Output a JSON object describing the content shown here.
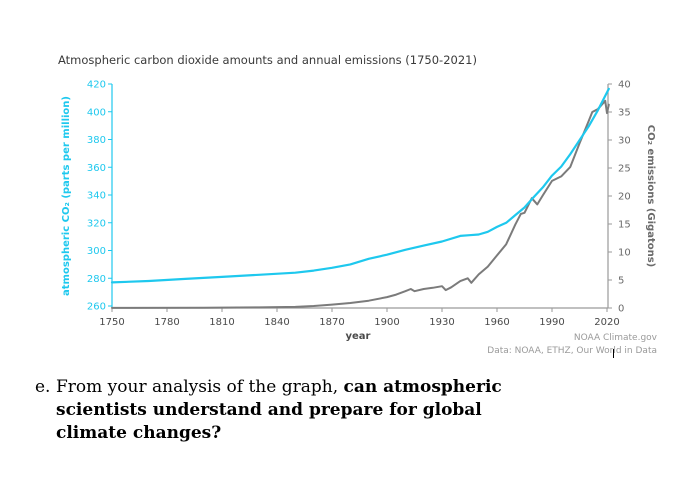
{
  "chart_data": {
    "type": "line",
    "title": "Atmospheric carbon dioxide amounts and annual emissions (1750-2021)",
    "xlabel": "year",
    "ylabel_left": "atmospheric CO₂ (parts per million)",
    "ylabel_right": "CO₂ emissions (Gigatons)",
    "xlim": [
      1750,
      2020
    ],
    "ylim_left": [
      260,
      420
    ],
    "ylim_right": [
      0,
      40
    ],
    "x_ticks": [
      "1750",
      "1780",
      "1810",
      "1840",
      "1870",
      "1900",
      "1930",
      "1960",
      "1990",
      "2020"
    ],
    "y_ticks_left": [
      "260",
      "280",
      "300",
      "320",
      "340",
      "360",
      "380",
      "400",
      "420"
    ],
    "y_ticks_right": [
      "0",
      "5",
      "10",
      "15",
      "20",
      "25",
      "30",
      "35",
      "40"
    ],
    "grid": false,
    "legend": "none",
    "series": [
      {
        "name": "atmospheric CO2 (ppm)",
        "axis": "left",
        "color": "#1ec8ee",
        "x": [
          1750,
          1770,
          1790,
          1810,
          1830,
          1850,
          1860,
          1870,
          1880,
          1890,
          1900,
          1910,
          1920,
          1930,
          1940,
          1945,
          1950,
          1955,
          1960,
          1965,
          1970,
          1975,
          1980,
          1985,
          1990,
          1995,
          2000,
          2005,
          2010,
          2015,
          2021
        ],
        "values": [
          277,
          278,
          279.5,
          281,
          282.5,
          284,
          285.5,
          287.5,
          290,
          294,
          297,
          300.5,
          303.5,
          306.5,
          310.5,
          311,
          311.5,
          313.5,
          317,
          320,
          325.5,
          331,
          338.5,
          345.5,
          354,
          360.5,
          369.5,
          379.5,
          389.5,
          401,
          416.5
        ]
      },
      {
        "name": "CO2 emissions (Gt)",
        "axis": "right",
        "color": "#7b7b7b",
        "x": [
          1750,
          1800,
          1830,
          1850,
          1860,
          1870,
          1880,
          1890,
          1900,
          1905,
          1910,
          1913,
          1915,
          1920,
          1925,
          1930,
          1932,
          1935,
          1940,
          1944,
          1946,
          1950,
          1955,
          1960,
          1965,
          1970,
          1973,
          1975,
          1979,
          1982,
          1985,
          1990,
          1995,
          2000,
          2005,
          2010,
          2012,
          2015,
          2019,
          2020,
          2021
        ],
        "values": [
          0.01,
          0.03,
          0.1,
          0.2,
          0.35,
          0.6,
          0.9,
          1.3,
          1.95,
          2.4,
          3.0,
          3.4,
          3.0,
          3.4,
          3.6,
          3.9,
          3.2,
          3.7,
          4.8,
          5.3,
          4.5,
          6.0,
          7.4,
          9.4,
          11.4,
          14.9,
          16.8,
          17.0,
          19.6,
          18.5,
          20.1,
          22.7,
          23.5,
          25.2,
          29.4,
          33.4,
          35.0,
          35.5,
          37.0,
          34.8,
          36.3
        ]
      }
    ],
    "credits": [
      "NOAA Climate.gov",
      "Data: NOAA, ETHZ, Our World in Data"
    ]
  },
  "question": {
    "prefix": "e.",
    "normal_text": "From your analysis of the graph, ",
    "bold_line1": "can atmospheric",
    "bold_line2": "scientists understand and prepare for global",
    "bold_line3": "climate changes?"
  }
}
